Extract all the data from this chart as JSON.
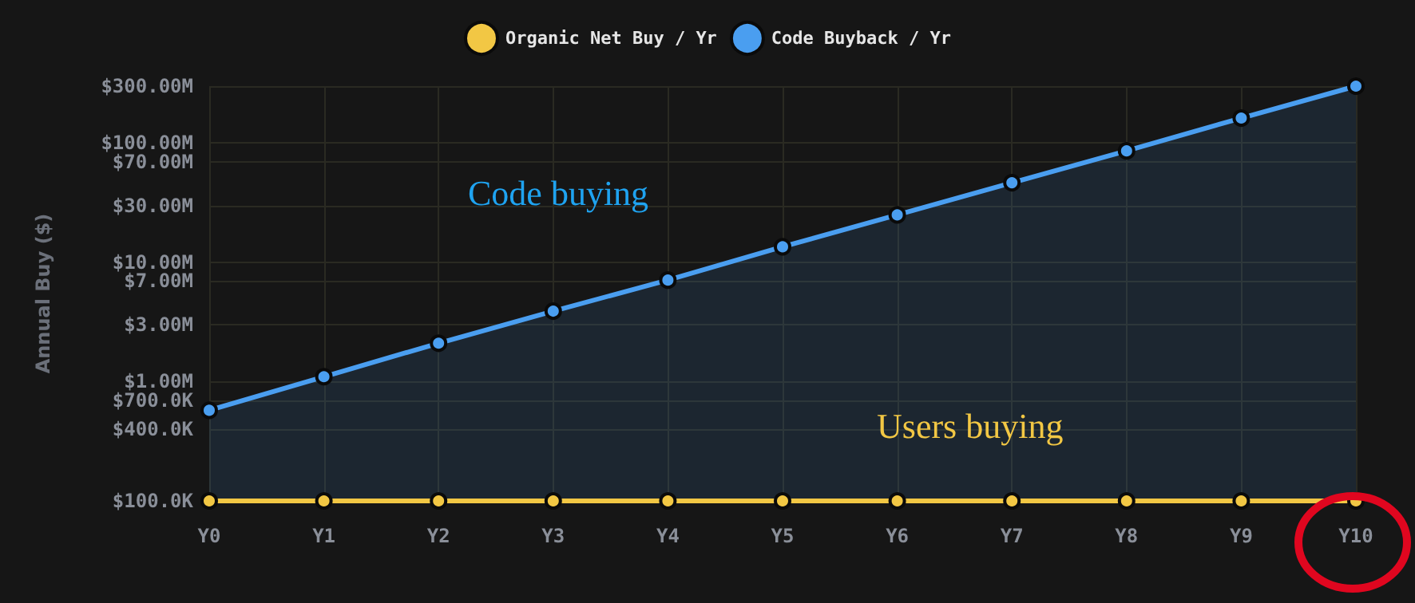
{
  "chart_data": {
    "type": "line",
    "ylabel": "Annual Buy ($)",
    "categories": [
      "Y0",
      "Y1",
      "Y2",
      "Y3",
      "Y4",
      "Y5",
      "Y6",
      "Y7",
      "Y8",
      "Y9",
      "Y10"
    ],
    "series": [
      {
        "name": "Organic Net Buy / Yr",
        "color": "#f2c744",
        "values": [
          100000,
          100000,
          100000,
          100000,
          100000,
          100000,
          100000,
          100000,
          100000,
          100000,
          100000
        ]
      },
      {
        "name": "Code Buyback / Yr",
        "type": "area",
        "color": "#4a9ef0",
        "values": [
          575000,
          1100000,
          2100000,
          3900000,
          7100000,
          13500000,
          25000000,
          46500000,
          86000000,
          162000000,
          300000000
        ]
      }
    ],
    "log": true,
    "ylim": [
      100000,
      300000000
    ],
    "yticks": [
      {
        "value": 100000,
        "label": "$100.0K"
      },
      {
        "value": 400000,
        "label": "$400.0K"
      },
      {
        "value": 700000,
        "label": "$700.0K"
      },
      {
        "value": 1000000,
        "label": "$1.00M"
      },
      {
        "value": 3000000,
        "label": "$3.00M"
      },
      {
        "value": 7000000,
        "label": "$7.00M"
      },
      {
        "value": 10000000,
        "label": "$10.00M"
      },
      {
        "value": 30000000,
        "label": "$30.00M"
      },
      {
        "value": 70000000,
        "label": "$70.00M"
      },
      {
        "value": 100000000,
        "label": "$100.00M"
      },
      {
        "value": 300000000,
        "label": "$300.00M"
      }
    ],
    "annotations": [
      "Code buying",
      "Users buying"
    ],
    "grid": true,
    "legend": "top",
    "marker": "circle",
    "line_style": "solid"
  }
}
